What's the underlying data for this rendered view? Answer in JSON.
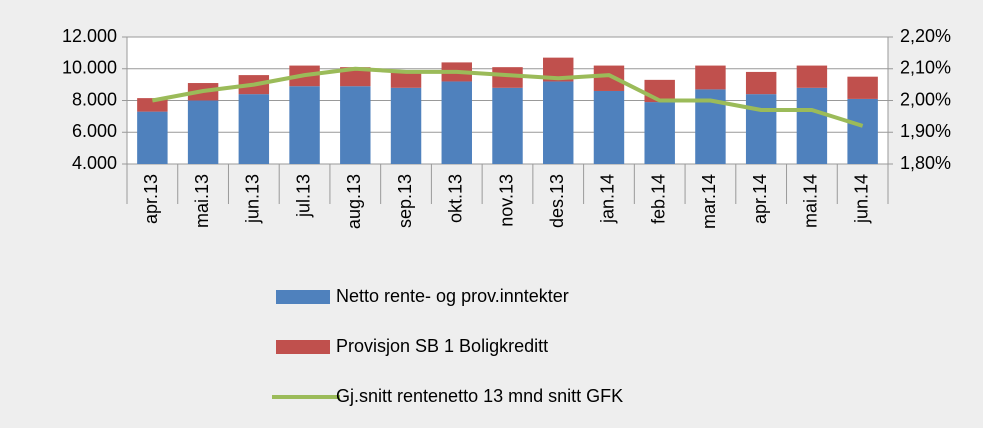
{
  "chart_data": {
    "type": "bar",
    "categories": [
      "apr.13",
      "mai.13",
      "jun.13",
      "jul.13",
      "aug.13",
      "sep.13",
      "okt.13",
      "nov.13",
      "des.13",
      "jan.14",
      "feb.14",
      "mar.14",
      "apr.14",
      "mai.14",
      "jun.14"
    ],
    "series": [
      {
        "name": "Netto rente- og prov.inntekter",
        "color": "#4f81bd",
        "type": "bar",
        "values": [
          7300,
          8000,
          8400,
          8900,
          8900,
          8800,
          9200,
          8800,
          9200,
          8600,
          7900,
          8700,
          8400,
          8800,
          8100
        ]
      },
      {
        "name": "Provisjon SB 1 Boligkreditt",
        "color": "#c0504d",
        "type": "bar",
        "values": [
          850,
          1100,
          1200,
          1300,
          1200,
          1100,
          1200,
          1300,
          1500,
          1600,
          1400,
          1500,
          1400,
          1400,
          1400
        ]
      },
      {
        "name": "Gj.snitt rentenetto 13 mnd snitt GFK",
        "color": "#9bbb59",
        "type": "line",
        "axis": "y2",
        "values": [
          2.0,
          2.03,
          2.05,
          2.08,
          2.1,
          2.09,
          2.09,
          2.08,
          2.07,
          2.08,
          2.0,
          2.0,
          1.97,
          1.97,
          1.92
        ]
      }
    ],
    "stacked": true,
    "ylim": [
      4000,
      12000
    ],
    "yticks": [
      {
        "value": 4000,
        "label": "4.000"
      },
      {
        "value": 6000,
        "label": "6.000"
      },
      {
        "value": 8000,
        "label": "8.000"
      },
      {
        "value": 10000,
        "label": "10.000"
      },
      {
        "value": 12000,
        "label": "12.000"
      }
    ],
    "y2lim": [
      1.8,
      2.2
    ],
    "y2ticks": [
      {
        "value": 1.8,
        "label": "1,80%"
      },
      {
        "value": 1.9,
        "label": "1,90%"
      },
      {
        "value": 2.0,
        "label": "2,00%"
      },
      {
        "value": 2.1,
        "label": "2,10%"
      },
      {
        "value": 2.2,
        "label": "2,20%"
      }
    ],
    "grid": true,
    "legend": "bottom"
  }
}
